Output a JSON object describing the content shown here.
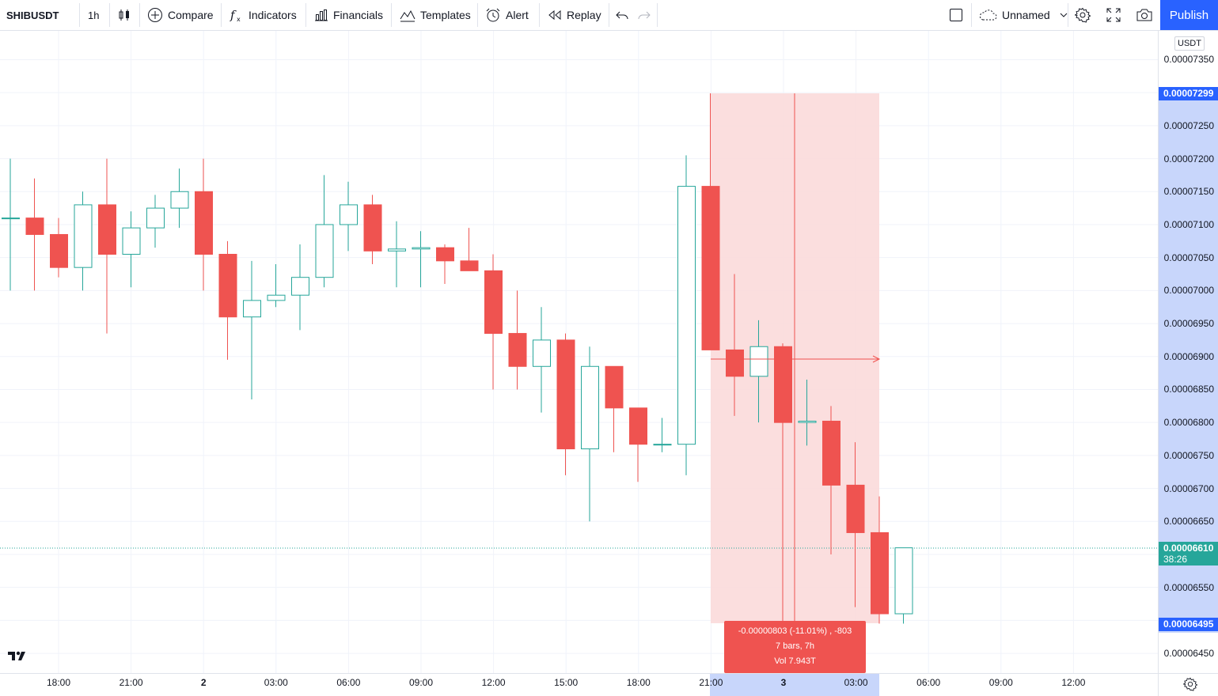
{
  "toolbar": {
    "symbol": "SHIBUSDT",
    "interval": "1h",
    "compare_label": "Compare",
    "indicators_label": "Indicators",
    "financials_label": "Financials",
    "templates_label": "Templates",
    "alert_label": "Alert",
    "replay_label": "Replay",
    "layout_name": "Unnamed",
    "publish_label": "Publish"
  },
  "price_scale": {
    "currency": "USDT",
    "ticks": [
      "0.00007350",
      "0.00007250",
      "0.00007200",
      "0.00007150",
      "0.00007100",
      "0.00007050",
      "0.00007000",
      "0.00006950",
      "0.00006900",
      "0.00006850",
      "0.00006800",
      "0.00006750",
      "0.00006700",
      "0.00006650",
      "0.00006550",
      "0.00006450"
    ],
    "high_label": "0.00007299",
    "last_price_label": "0.00006610",
    "countdown_label": "38:26",
    "low_label": "0.00006495"
  },
  "time_scale": {
    "ticks": [
      "18:00",
      "21:00",
      "2",
      "03:00",
      "06:00",
      "09:00",
      "12:00",
      "15:00",
      "18:00",
      "21:00",
      "3",
      "03:00",
      "06:00",
      "09:00",
      "12:00"
    ]
  },
  "measure": {
    "line1": "-0.00000803 (-11.01%) , -803",
    "line2": "7 bars, 7h",
    "line3": "Vol 7.943T"
  },
  "colors": {
    "up": "#26a69a",
    "down": "#ef5350",
    "accent": "#2962ff",
    "highlight_scale": "#c8d6fb",
    "measure_fill": "#fbdada"
  },
  "chart_data": {
    "type": "candlestick",
    "symbol": "SHIBUSDT",
    "interval": "1h",
    "ylim": [
      6.41e-05,
      7.39e-05
    ],
    "candles": [
      {
        "o": 7.11e-05,
        "h": 7.2e-05,
        "l": 7e-05,
        "c": 7.11e-05
      },
      {
        "o": 7.11e-05,
        "h": 7.17e-05,
        "l": 7e-05,
        "c": 7.085e-05
      },
      {
        "o": 7.085e-05,
        "h": 7.11e-05,
        "l": 7.02e-05,
        "c": 7.035e-05
      },
      {
        "o": 7.035e-05,
        "h": 7.15e-05,
        "l": 7e-05,
        "c": 7.13e-05
      },
      {
        "o": 7.13e-05,
        "h": 7.2e-05,
        "l": 6.935e-05,
        "c": 7.055e-05
      },
      {
        "o": 7.055e-05,
        "h": 7.12e-05,
        "l": 7.005e-05,
        "c": 7.095e-05
      },
      {
        "o": 7.095e-05,
        "h": 7.145e-05,
        "l": 7.065e-05,
        "c": 7.125e-05
      },
      {
        "o": 7.125e-05,
        "h": 7.185e-05,
        "l": 7.095e-05,
        "c": 7.15e-05
      },
      {
        "o": 7.15e-05,
        "h": 7.2e-05,
        "l": 7e-05,
        "c": 7.055e-05
      },
      {
        "o": 7.055e-05,
        "h": 7.075e-05,
        "l": 6.895e-05,
        "c": 6.96e-05
      },
      {
        "o": 6.96e-05,
        "h": 7.045e-05,
        "l": 6.835e-05,
        "c": 6.985e-05
      },
      {
        "o": 6.985e-05,
        "h": 7.04e-05,
        "l": 6.975e-05,
        "c": 6.993e-05
      },
      {
        "o": 6.993e-05,
        "h": 7.07e-05,
        "l": 6.94e-05,
        "c": 7.02e-05
      },
      {
        "o": 7.02e-05,
        "h": 7.175e-05,
        "l": 7.005e-05,
        "c": 7.1e-05
      },
      {
        "o": 7.1e-05,
        "h": 7.165e-05,
        "l": 7.06e-05,
        "c": 7.13e-05
      },
      {
        "o": 7.13e-05,
        "h": 7.145e-05,
        "l": 7.04e-05,
        "c": 7.06e-05
      },
      {
        "o": 7.06e-05,
        "h": 7.105e-05,
        "l": 7.005e-05,
        "c": 7.063e-05
      },
      {
        "o": 7.063e-05,
        "h": 7.09e-05,
        "l": 7.005e-05,
        "c": 7.065e-05
      },
      {
        "o": 7.065e-05,
        "h": 7.07e-05,
        "l": 7.01e-05,
        "c": 7.045e-05
      },
      {
        "o": 7.045e-05,
        "h": 7.095e-05,
        "l": 7.03e-05,
        "c": 7.03e-05
      },
      {
        "o": 7.03e-05,
        "h": 7.055e-05,
        "l": 6.85e-05,
        "c": 6.935e-05
      },
      {
        "o": 6.935e-05,
        "h": 7e-05,
        "l": 6.85e-05,
        "c": 6.885e-05
      },
      {
        "o": 6.885e-05,
        "h": 6.975e-05,
        "l": 6.815e-05,
        "c": 6.925e-05
      },
      {
        "o": 6.925e-05,
        "h": 6.935e-05,
        "l": 6.72e-05,
        "c": 6.76e-05
      },
      {
        "o": 6.76e-05,
        "h": 6.915e-05,
        "l": 6.65e-05,
        "c": 6.885e-05
      },
      {
        "o": 6.885e-05,
        "h": 6.885e-05,
        "l": 6.755e-05,
        "c": 6.822e-05
      },
      {
        "o": 6.822e-05,
        "h": 6.822e-05,
        "l": 6.71e-05,
        "c": 6.767e-05
      },
      {
        "o": 6.767e-05,
        "h": 6.807e-05,
        "l": 6.755e-05,
        "c": 6.767e-05
      },
      {
        "o": 6.767e-05,
        "h": 7.205e-05,
        "l": 6.72e-05,
        "c": 7.158e-05
      },
      {
        "o": 7.158e-05,
        "h": 7.299e-05,
        "l": 6.91e-05,
        "c": 6.91e-05
      },
      {
        "o": 6.91e-05,
        "h": 7.025e-05,
        "l": 6.81e-05,
        "c": 6.87e-05
      },
      {
        "o": 6.87e-05,
        "h": 6.955e-05,
        "l": 6.8e-05,
        "c": 6.915e-05
      },
      {
        "o": 6.915e-05,
        "h": 6.92e-05,
        "l": 6.495e-05,
        "c": 6.8e-05
      },
      {
        "o": 6.8e-05,
        "h": 6.865e-05,
        "l": 6.765e-05,
        "c": 6.802e-05
      },
      {
        "o": 6.802e-05,
        "h": 6.825e-05,
        "l": 6.6e-05,
        "c": 6.705e-05
      },
      {
        "o": 6.705e-05,
        "h": 6.77e-05,
        "l": 6.52e-05,
        "c": 6.633e-05
      },
      {
        "o": 6.633e-05,
        "h": 6.688e-05,
        "l": 6.495e-05,
        "c": 6.51e-05
      },
      {
        "o": 6.51e-05,
        "h": 6.61e-05,
        "l": 6.495e-05,
        "c": 6.61e-05
      }
    ],
    "time_ticks": [
      "18:00",
      "21:00",
      "2",
      "03:00",
      "06:00",
      "09:00",
      "12:00",
      "15:00",
      "18:00",
      "21:00",
      "3",
      "03:00",
      "06:00",
      "09:00",
      "12:00"
    ],
    "grid": true,
    "measurement": {
      "from_price": 7.299e-05,
      "to_price": 6.495e-05,
      "bars": 7
    }
  }
}
